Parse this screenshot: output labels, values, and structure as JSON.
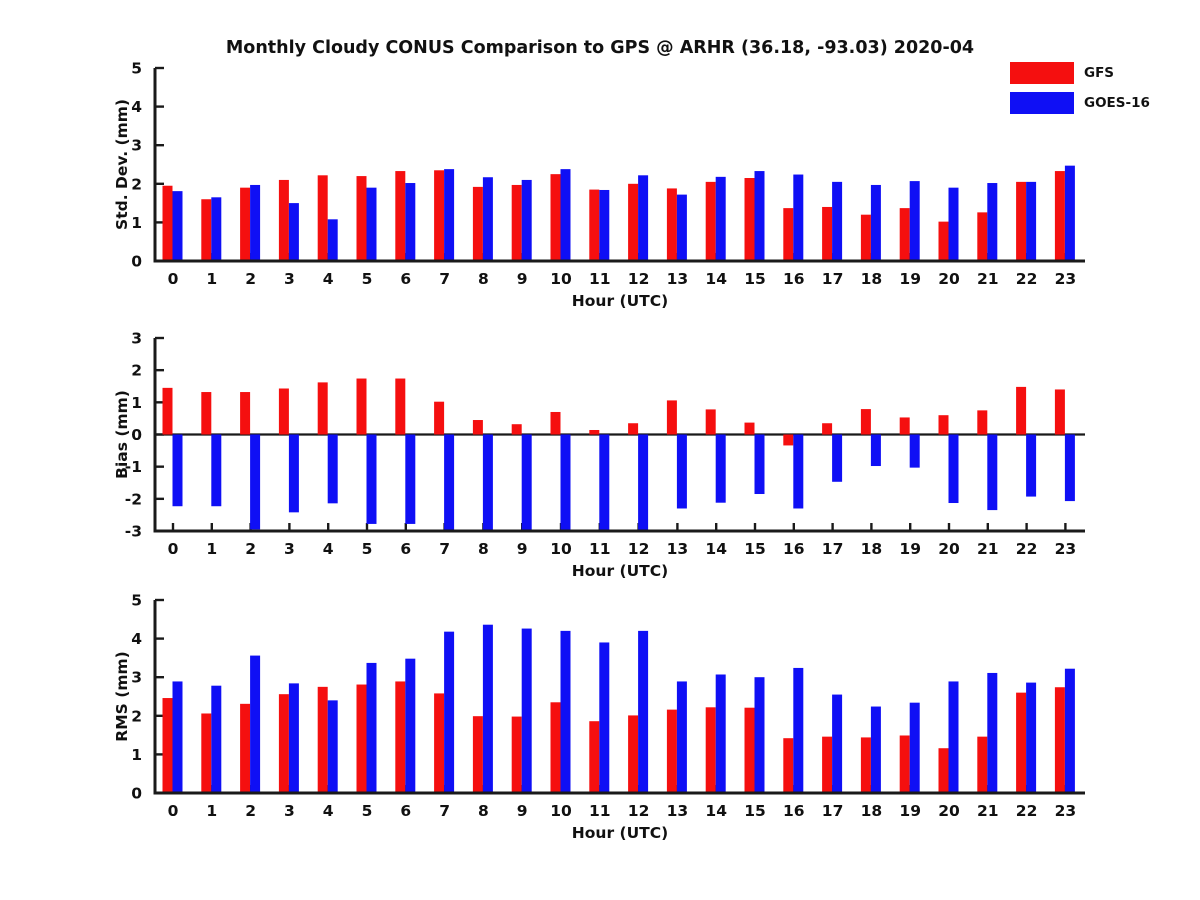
{
  "title": "Monthly Cloudy CONUS Comparison to GPS @ ARHR (36.18, -93.03) 2020-04",
  "legend": {
    "items": [
      {
        "label": "GFS",
        "color": "#f50f0f"
      },
      {
        "label": "GOES-16",
        "color": "#0f0ff5"
      }
    ]
  },
  "colors": {
    "axis": "#1a1a1a",
    "text": "#111111"
  },
  "chart_data": [
    {
      "type": "bar",
      "panel": "std-dev",
      "ylabel": "Std. Dev. (mm)",
      "xlabel": "Hour (UTC)",
      "ylim": [
        0,
        5
      ],
      "yticks": [
        0,
        1,
        2,
        3,
        4,
        5
      ],
      "grid": false,
      "legend_position": "top-right",
      "categories": [
        "0",
        "1",
        "2",
        "3",
        "4",
        "5",
        "6",
        "7",
        "8",
        "9",
        "10",
        "11",
        "12",
        "13",
        "14",
        "15",
        "16",
        "17",
        "18",
        "19",
        "20",
        "21",
        "22",
        "23"
      ],
      "series": [
        {
          "name": "GFS",
          "color": "#f50f0f",
          "values": [
            1.95,
            1.6,
            1.9,
            2.1,
            2.22,
            2.2,
            2.33,
            2.35,
            1.92,
            1.97,
            2.25,
            1.85,
            2.0,
            1.88,
            2.05,
            2.15,
            1.37,
            1.4,
            1.2,
            1.37,
            1.02,
            1.26,
            2.05,
            2.33
          ]
        },
        {
          "name": "GOES-16",
          "color": "#0f0ff5",
          "values": [
            1.81,
            1.65,
            1.97,
            1.5,
            1.08,
            1.9,
            2.02,
            2.38,
            2.17,
            2.1,
            2.38,
            1.84,
            2.22,
            1.72,
            2.18,
            2.33,
            2.24,
            2.05,
            1.97,
            2.07,
            1.9,
            2.02,
            2.05,
            2.47
          ]
        }
      ]
    },
    {
      "type": "bar",
      "panel": "bias",
      "ylabel": "Bias (mm)",
      "xlabel": "Hour (UTC)",
      "ylim": [
        -3,
        3
      ],
      "yticks": [
        -3,
        -2,
        -1,
        0,
        1,
        2,
        3
      ],
      "zero_line": true,
      "grid": false,
      "categories": [
        "0",
        "1",
        "2",
        "3",
        "4",
        "5",
        "6",
        "7",
        "8",
        "9",
        "10",
        "11",
        "12",
        "13",
        "14",
        "15",
        "16",
        "17",
        "18",
        "19",
        "20",
        "21",
        "22",
        "23"
      ],
      "series": [
        {
          "name": "GFS",
          "color": "#f50f0f",
          "values": [
            1.45,
            1.32,
            1.32,
            1.43,
            1.62,
            1.74,
            1.74,
            1.02,
            0.45,
            0.32,
            0.7,
            0.14,
            0.35,
            1.06,
            0.78,
            0.37,
            -0.34,
            0.35,
            0.79,
            0.53,
            0.6,
            0.75,
            1.48,
            1.4
          ]
        },
        {
          "name": "GOES-16",
          "color": "#0f0ff5",
          "values": [
            -2.23,
            -2.23,
            -2.95,
            -2.42,
            -2.14,
            -2.78,
            -2.78,
            -3.0,
            -3.0,
            -3.0,
            -3.0,
            -3.0,
            -3.0,
            -2.3,
            -2.12,
            -1.85,
            -2.3,
            -1.47,
            -0.98,
            -1.03,
            -2.13,
            -2.35,
            -1.93,
            -2.07
          ]
        }
      ]
    },
    {
      "type": "bar",
      "panel": "rms",
      "ylabel": "RMS (mm)",
      "xlabel": "Hour (UTC)",
      "ylim": [
        0,
        5
      ],
      "yticks": [
        0,
        1,
        2,
        3,
        4,
        5
      ],
      "grid": false,
      "categories": [
        "0",
        "1",
        "2",
        "3",
        "4",
        "5",
        "6",
        "7",
        "8",
        "9",
        "10",
        "11",
        "12",
        "13",
        "14",
        "15",
        "16",
        "17",
        "18",
        "19",
        "20",
        "21",
        "22",
        "23"
      ],
      "series": [
        {
          "name": "GFS",
          "color": "#f50f0f",
          "values": [
            2.46,
            2.06,
            2.31,
            2.56,
            2.75,
            2.81,
            2.89,
            2.58,
            1.99,
            1.98,
            2.35,
            1.86,
            2.01,
            2.16,
            2.22,
            2.21,
            1.42,
            1.46,
            1.44,
            1.49,
            1.16,
            1.46,
            2.6,
            2.74
          ]
        },
        {
          "name": "GOES-16",
          "color": "#0f0ff5",
          "values": [
            2.89,
            2.78,
            3.56,
            2.84,
            2.4,
            3.37,
            3.48,
            4.18,
            4.36,
            4.26,
            4.2,
            3.9,
            4.2,
            2.89,
            3.07,
            3.0,
            3.24,
            2.55,
            2.24,
            2.34,
            2.89,
            3.11,
            2.86,
            3.22
          ]
        }
      ]
    }
  ]
}
